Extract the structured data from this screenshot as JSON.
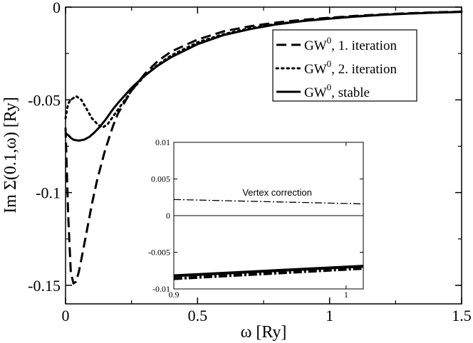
{
  "chart_data": {
    "type": "line",
    "title": "",
    "xlabel": "ω [Ry]",
    "ylabel": "Im Σ(0.1,ω) [Ry]",
    "xlim": [
      0,
      1.5
    ],
    "ylim": [
      -0.16,
      0
    ],
    "x_ticks": [
      0,
      0.5,
      1,
      1.5
    ],
    "x_tick_labels": [
      "0",
      "0.5",
      "1",
      "1.5"
    ],
    "y_ticks": [
      0,
      -0.05,
      -0.1,
      -0.15
    ],
    "y_tick_labels": [
      "0",
      "-0.05",
      "-0.1",
      "-0.15"
    ],
    "legend_position": "top-right",
    "series": [
      {
        "name": "GW⁰, 1. iteration",
        "legend_main": "GW",
        "legend_sup": "0",
        "legend_rest": ", 1. iteration",
        "style": "dashed",
        "x": [
          0.0,
          0.01,
          0.02,
          0.03,
          0.04,
          0.05,
          0.06,
          0.08,
          0.1,
          0.12,
          0.15,
          0.18,
          0.2,
          0.25,
          0.3,
          0.35,
          0.4,
          0.5,
          0.6,
          0.7,
          0.8,
          0.9,
          1.0,
          1.1,
          1.2,
          1.3,
          1.4,
          1.5
        ],
        "y": [
          -0.065,
          -0.112,
          -0.143,
          -0.149,
          -0.148,
          -0.143,
          -0.136,
          -0.121,
          -0.106,
          -0.093,
          -0.077,
          -0.064,
          -0.057,
          -0.045,
          -0.036,
          -0.029,
          -0.024,
          -0.0175,
          -0.013,
          -0.0103,
          -0.0083,
          -0.0068,
          -0.0057,
          -0.0047,
          -0.0039,
          -0.0033,
          -0.0028,
          -0.0024
        ]
      },
      {
        "name": "GW⁰, 2. iteration",
        "legend_main": "GW",
        "legend_sup": "0",
        "legend_rest": ", 2. iteration",
        "style": "dotted",
        "x": [
          0.0,
          0.01,
          0.02,
          0.04,
          0.06,
          0.08,
          0.1,
          0.12,
          0.14,
          0.16,
          0.18,
          0.2,
          0.25,
          0.3,
          0.35,
          0.4,
          0.5,
          0.6,
          0.7,
          0.8,
          0.9,
          1.0,
          1.1,
          1.2,
          1.3,
          1.4,
          1.5
        ],
        "y": [
          -0.06,
          -0.052,
          -0.05,
          -0.048,
          -0.05,
          -0.055,
          -0.06,
          -0.063,
          -0.065,
          -0.063,
          -0.059,
          -0.055,
          -0.045,
          -0.037,
          -0.031,
          -0.026,
          -0.019,
          -0.0145,
          -0.0113,
          -0.009,
          -0.0073,
          -0.006,
          -0.0049,
          -0.0041,
          -0.0034,
          -0.0029,
          -0.0025
        ]
      },
      {
        "name": "GW⁰, stable",
        "legend_main": "GW",
        "legend_sup": "0",
        "legend_rest": ", stable",
        "style": "solid",
        "x": [
          0.0,
          0.01,
          0.02,
          0.03,
          0.05,
          0.07,
          0.09,
          0.11,
          0.13,
          0.15,
          0.18,
          0.2,
          0.25,
          0.3,
          0.35,
          0.4,
          0.5,
          0.6,
          0.7,
          0.8,
          0.9,
          1.0,
          1.1,
          1.2,
          1.3,
          1.4,
          1.5
        ],
        "y": [
          -0.068,
          -0.069,
          -0.0705,
          -0.0715,
          -0.072,
          -0.0715,
          -0.07,
          -0.0675,
          -0.0645,
          -0.061,
          -0.055,
          -0.0515,
          -0.0435,
          -0.037,
          -0.0315,
          -0.027,
          -0.02,
          -0.015,
          -0.0118,
          -0.0093,
          -0.0075,
          -0.0062,
          -0.0051,
          -0.0042,
          -0.0035,
          -0.003,
          -0.0026
        ]
      }
    ],
    "inset": {
      "xlim": [
        0.9,
        1.01
      ],
      "ylim": [
        -0.01,
        0.01
      ],
      "x_ticks": [
        0.9,
        1
      ],
      "x_tick_labels": [
        "0.9",
        "1"
      ],
      "y_ticks": [
        0.01,
        0.005,
        0,
        -0.005,
        -0.01
      ],
      "y_tick_labels": [
        "0.01",
        "0.005",
        "0",
        "-0.005",
        "-0.01"
      ],
      "annotation": "Vertex correction",
      "annotation_at": [
        0.96,
        0.0027
      ],
      "series": [
        {
          "name": "Vertex correction",
          "style": "dashdot",
          "x": [
            0.9,
            1.01
          ],
          "y": [
            0.0022,
            0.0016
          ]
        },
        {
          "name": "zero line",
          "style": "thin",
          "x": [
            0.9,
            1.01
          ],
          "y": [
            0.0,
            0.0
          ]
        },
        {
          "name": "GW⁰, stable",
          "style": "solid-thick",
          "x": [
            0.9,
            1.01
          ],
          "y": [
            -0.0082,
            -0.0069
          ]
        },
        {
          "name": "GW⁰ + vertex",
          "style": "dashdot-thick",
          "x": [
            0.9,
            1.01
          ],
          "y": [
            -0.0086,
            -0.0072
          ]
        }
      ]
    }
  }
}
